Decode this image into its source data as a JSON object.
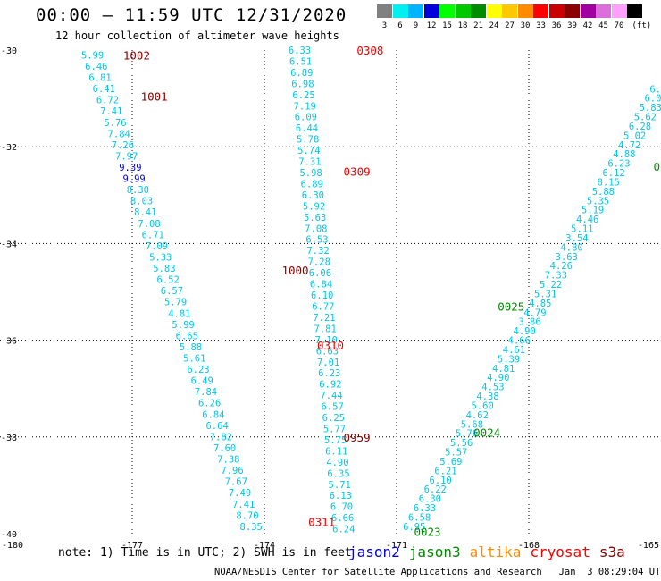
{
  "title": "00:00 – 11:59 UTC 12/31/2020",
  "subtitle": "12 hour collection of altimeter wave heights",
  "legend": {
    "unit": "(ft)",
    "levels": [
      {
        "label": "3",
        "color": "#808080"
      },
      {
        "label": "6",
        "color": "#00f0f0"
      },
      {
        "label": "9",
        "color": "#00b4ff"
      },
      {
        "label": "12",
        "color": "#0000dc"
      },
      {
        "label": "15",
        "color": "#00ff00"
      },
      {
        "label": "18",
        "color": "#00c800"
      },
      {
        "label": "21",
        "color": "#008c00"
      },
      {
        "label": "24",
        "color": "#ffff00"
      },
      {
        "label": "27",
        "color": "#ffc800"
      },
      {
        "label": "30",
        "color": "#ff8c00"
      },
      {
        "label": "33",
        "color": "#ff0000"
      },
      {
        "label": "36",
        "color": "#c80000"
      },
      {
        "label": "39",
        "color": "#8c0000"
      },
      {
        "label": "42",
        "color": "#a000a0"
      },
      {
        "label": "45",
        "color": "#dc6edc"
      },
      {
        "label": "70",
        "color": "#ffa0ff"
      },
      {
        "label": "",
        "color": "#000000"
      }
    ]
  },
  "footer": {
    "notes": "note: 1) Time is in UTC; 2) SWH is in feet",
    "satellites": [
      {
        "name": "jason2",
        "color": "#0000dc"
      },
      {
        "name": "jason3",
        "color": "#008c00"
      },
      {
        "name": "altika",
        "color": "#ff8c00"
      },
      {
        "name": "cryosat",
        "color": "#ff0000"
      },
      {
        "name": "s3a",
        "color": "#8c0000"
      }
    ],
    "credit": "NOAA/NESDIS Center for Satellite Applications and Research   Jan  3 08:29:04 UTC 2021"
  },
  "chart_data": {
    "type": "scatter",
    "xlim": [
      -180,
      -165
    ],
    "ylim": [
      -40,
      -30
    ],
    "x_ticks": [
      "-180",
      "-177",
      "-174",
      "-171",
      "-168",
      "-165"
    ],
    "y_ticks": [
      "-30",
      "-32",
      "-34",
      "-36",
      "-38",
      "-40"
    ],
    "grid": true,
    "colors": {
      "cyan": "#00c8e6",
      "blue": "#0000dc",
      "red": "#ff0000",
      "darkred": "#8c0000",
      "green": "#008c00"
    },
    "tracks": [
      {
        "id": "track-1",
        "color": "cyan",
        "start": [
          -177.9,
          -30.1
        ],
        "end": [
          -174.3,
          -39.85
        ],
        "values": [
          "5.99",
          "6.46",
          "6.81",
          "6.41",
          "6.72",
          "7.41",
          "5.76",
          "7.84",
          "7.26",
          "7.97",
          "9.39",
          "9.99",
          "8.30",
          "8.03",
          "8.41",
          "7.08",
          "6.71",
          "7.09",
          "5.33",
          "5.83",
          "6.52",
          "6.57",
          "5.79",
          "4.81",
          "5.99",
          "6.65",
          "5.88",
          "5.61",
          "6.23",
          "6.49",
          "7.84",
          "6.26",
          "6.84",
          "6.64",
          "7.82",
          "7.60",
          "7.38",
          "7.96",
          "7.67",
          "7.49",
          "7.41",
          "8.70",
          "8.35"
        ],
        "color_overrides": {
          "10": "blue",
          "11": "blue"
        }
      },
      {
        "id": "track-2",
        "color": "cyan",
        "start": [
          -173.2,
          -30.0
        ],
        "end": [
          -172.2,
          -39.9
        ],
        "values": [
          "6.33",
          "6.51",
          "6.89",
          "6.98",
          "6.25",
          "7.19",
          "6.09",
          "6.44",
          "5.78",
          "5.74",
          "7.31",
          "5.98",
          "6.89",
          "6.30",
          "5.92",
          "5.63",
          "7.08",
          "6.53",
          "7.32",
          "7.28",
          "6.06",
          "6.84",
          "6.10",
          "6.77",
          "7.21",
          "7.81",
          "7.10",
          "6.63",
          "7.01",
          "6.23",
          "6.92",
          "7.44",
          "6.57",
          "6.25",
          "5.77",
          "5.75",
          "6.11",
          "4.90",
          "6.35",
          "5.71",
          "6.13",
          "6.70",
          "6.66",
          "6.24"
        ]
      },
      {
        "id": "track-3",
        "color": "cyan",
        "start": [
          -170.6,
          -39.85
        ],
        "end": [
          -165.0,
          -30.8
        ],
        "values": [
          "6.95",
          "6.58",
          "6.33",
          "6.30",
          "6.22",
          "6.10",
          "6.21",
          "5.69",
          "5.57",
          "5.56",
          "5.76",
          "5.68",
          "4.62",
          "5.60",
          "4.38",
          "4.53",
          "4.90",
          "4.81",
          "5.39",
          "4.61",
          "4.66",
          "4.90",
          "3.86",
          "4.79",
          "4.85",
          "5.31",
          "5.22",
          "7.33",
          "4.26",
          "3.63",
          "4.80",
          "3.54",
          "5.11",
          "4.46",
          "5.19",
          "5.35",
          "5.88",
          "8.15",
          "6.12",
          "6.23",
          "4.88",
          "4.72",
          "5.02",
          "6.28",
          "5.62",
          "5.83",
          "6.09",
          "6.31"
        ]
      }
    ],
    "time_labels": [
      {
        "text": "1002",
        "x": -176.9,
        "y": -30.1,
        "color": "darkred"
      },
      {
        "text": "1001",
        "x": -176.5,
        "y": -30.95,
        "color": "darkred"
      },
      {
        "text": "0308",
        "x": -171.6,
        "y": -30.0,
        "color": "red"
      },
      {
        "text": "0309",
        "x": -171.9,
        "y": -32.5,
        "color": "red"
      },
      {
        "text": "1000",
        "x": -173.3,
        "y": -34.55,
        "color": "darkred"
      },
      {
        "text": "0310",
        "x": -172.5,
        "y": -36.1,
        "color": "red"
      },
      {
        "text": "0959",
        "x": -171.9,
        "y": -38.0,
        "color": "darkred"
      },
      {
        "text": "0311",
        "x": -172.7,
        "y": -39.75,
        "color": "red"
      },
      {
        "text": "0025",
        "x": -168.4,
        "y": -35.3,
        "color": "green"
      },
      {
        "text": "0024",
        "x": -168.95,
        "y": -37.9,
        "color": "green"
      },
      {
        "text": "0023",
        "x": -170.3,
        "y": -39.95,
        "color": "green"
      },
      {
        "text": "0",
        "x": -165.05,
        "y": -32.4,
        "color": "green"
      }
    ]
  }
}
